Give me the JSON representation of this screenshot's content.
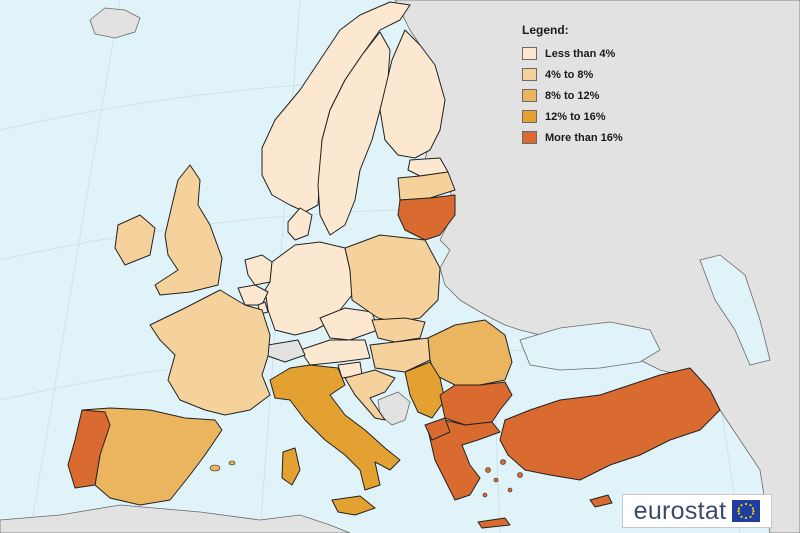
{
  "legend": {
    "title": "Legend:",
    "items": [
      {
        "label": "Less than 4%",
        "color": "#fce8d0"
      },
      {
        "label": "4% to 8%",
        "color": "#f5d19c"
      },
      {
        "label": "8% to 12%",
        "color": "#ebb55f"
      },
      {
        "label": "12% to 16%",
        "color": "#e3a132"
      },
      {
        "label": "More than 16%",
        "color": "#d96b30"
      }
    ]
  },
  "colors": {
    "sea": "#dff3f8",
    "non_eu": "#e2e2e2",
    "border": "#222222"
  },
  "logo": {
    "text": "eurostat",
    "mark": "eu-flag-icon"
  }
}
